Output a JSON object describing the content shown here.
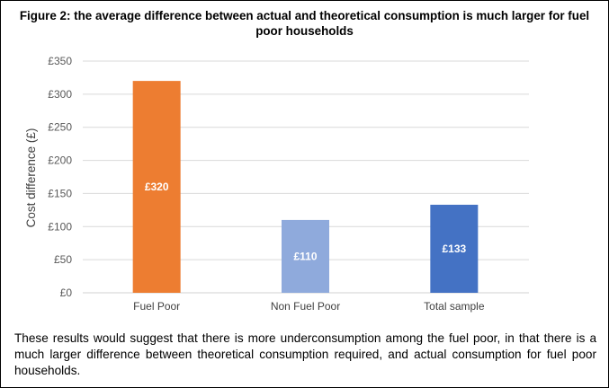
{
  "figure_title": "Figure 2: the average difference between actual and theoretical consumption is much larger for fuel poor households",
  "paragraph": "These results would suggest that there is more underconsumption among the fuel poor, in that there is a much larger difference between theoretical consumption required, and actual consumption for fuel poor households.",
  "chart_data": {
    "type": "bar",
    "title": "Figure 2: the average difference between actual and theoretical consumption is much larger for fuel poor households",
    "xlabel": "",
    "ylabel": "Cost difference (£)",
    "categories": [
      "Fuel Poor",
      "Non Fuel Poor",
      "Total sample"
    ],
    "values": [
      320,
      110,
      133
    ],
    "data_labels": [
      "£320",
      "£110",
      "£133"
    ],
    "colors": [
      "#ED7D31",
      "#8FAADC",
      "#4472C4"
    ],
    "ylim": [
      0,
      350
    ],
    "yticks": [
      0,
      50,
      100,
      150,
      200,
      250,
      300,
      350
    ],
    "ytick_labels": [
      "£0",
      "£50",
      "£100",
      "£150",
      "£200",
      "£250",
      "£300",
      "£350"
    ],
    "grid": true,
    "legend": "none"
  }
}
